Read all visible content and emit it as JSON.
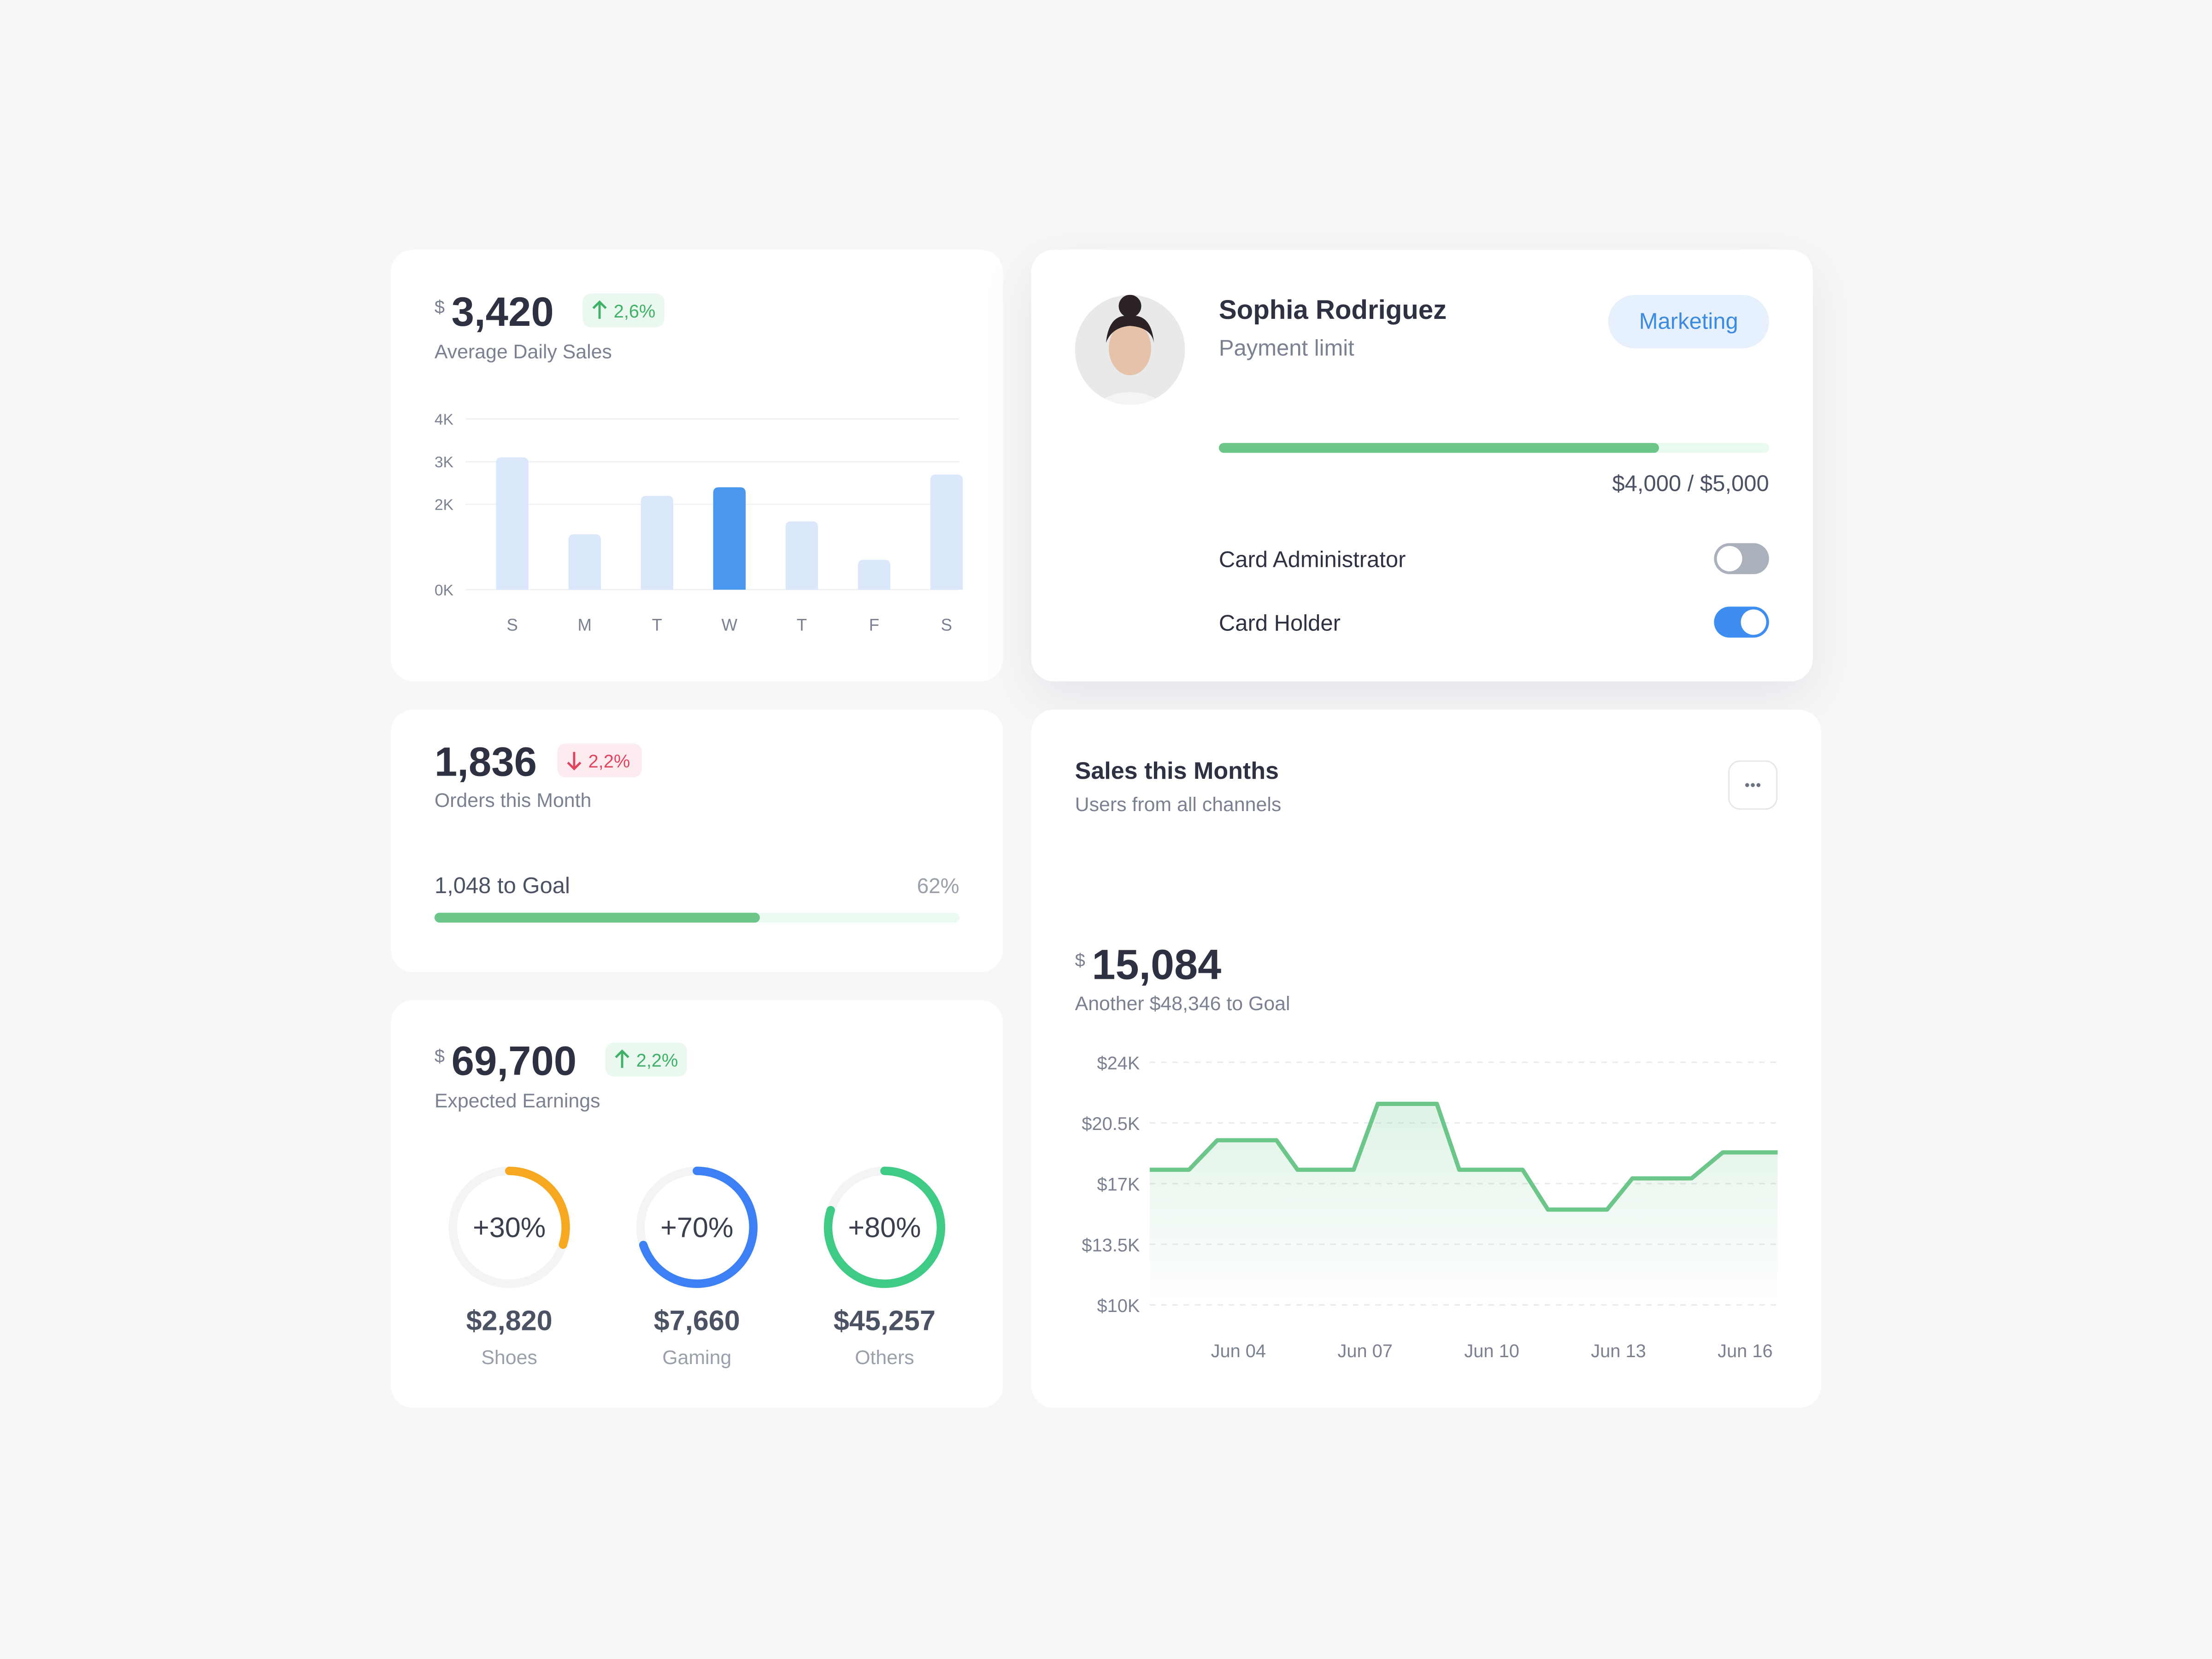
{
  "daily_sales": {
    "currency": "$",
    "amount": "3,420",
    "change": "2,6%",
    "caption": "Average Daily Sales",
    "chart": {
      "type": "bar",
      "categories": [
        "S",
        "M",
        "T",
        "W",
        "T",
        "F",
        "S"
      ],
      "values": [
        3.1,
        1.3,
        2.2,
        2.4,
        1.6,
        0.7,
        2.7
      ],
      "highlight": 3,
      "color": "#dbe8fc",
      "highlight_color": "#4a98ee",
      "ylim": [
        0,
        4
      ],
      "yticks": [
        {
          "value": 4,
          "label": "4K"
        },
        {
          "value": 3,
          "label": "3K"
        },
        {
          "value": 2,
          "label": "2K"
        },
        {
          "value": 0,
          "label": "0K"
        }
      ],
      "grid": true
    }
  },
  "profile": {
    "name": "Sophia Rodriguez",
    "subtitle": "Payment limit",
    "tag": "Marketing",
    "limit_used": 4000,
    "limit": 5000,
    "limit_label": "$4,000 / $5,000",
    "toggles": [
      {
        "label": "Card Administrator",
        "enabled": false
      },
      {
        "label": "Card Holder",
        "enabled": true
      }
    ]
  },
  "orders": {
    "amount": "1,836",
    "change": "2,2%",
    "caption": "Orders this Month",
    "goal": "1,048 to Goal",
    "percent": 62,
    "percent_label": "62%"
  },
  "earnings": {
    "currency": "$",
    "amount": "69,700",
    "change": "2,2%",
    "caption": "Expected Earnings",
    "rings": [
      {
        "value": 30,
        "label": "+30%",
        "amount": "$2,820",
        "name": "Shoes",
        "color": "#f7a821"
      },
      {
        "value": 70,
        "label": "+70%",
        "amount": "$7,660",
        "name": "Gaming",
        "color": "#3d80f5"
      },
      {
        "value": 80,
        "label": "+80%",
        "amount": "$45,257",
        "name": "Others",
        "color": "#3fcb85"
      }
    ]
  },
  "sales": {
    "title": "Sales this Months",
    "subtitle": "Users from all channels",
    "currency": "$",
    "amount": "15,084",
    "caption": "Another $48,346 to Goal",
    "chart": {
      "type": "line",
      "x": [
        1.9,
        2.83,
        3.5,
        4.9,
        5.4,
        6.73,
        7.3,
        8.7,
        9.23,
        10.73,
        11.33,
        12.73,
        13.33,
        14.73,
        15.47,
        16.77
      ],
      "values": [
        17.8,
        17.8,
        19.5,
        19.5,
        17.8,
        17.8,
        21.6,
        21.6,
        17.8,
        17.8,
        15.5,
        15.5,
        17.3,
        17.3,
        18.8,
        18.8
      ],
      "color": "#6cc68a",
      "xlim": [
        1.9,
        16.8
      ],
      "xticks": [
        {
          "value": 4,
          "label": "Jun 04"
        },
        {
          "value": 7,
          "label": "Jun 07"
        },
        {
          "value": 10,
          "label": "Jun 10"
        },
        {
          "value": 13,
          "label": "Jun 13"
        },
        {
          "value": 16,
          "label": "Jun 16"
        }
      ],
      "ylim": [
        10,
        24
      ],
      "yticks": [
        {
          "value": 24,
          "label": "$24K"
        },
        {
          "value": 20.5,
          "label": "$20.5K"
        },
        {
          "value": 17,
          "label": "$17K"
        },
        {
          "value": 13.5,
          "label": "$13.5K"
        },
        {
          "value": 10,
          "label": "$10K"
        }
      ],
      "grid": true
    }
  }
}
